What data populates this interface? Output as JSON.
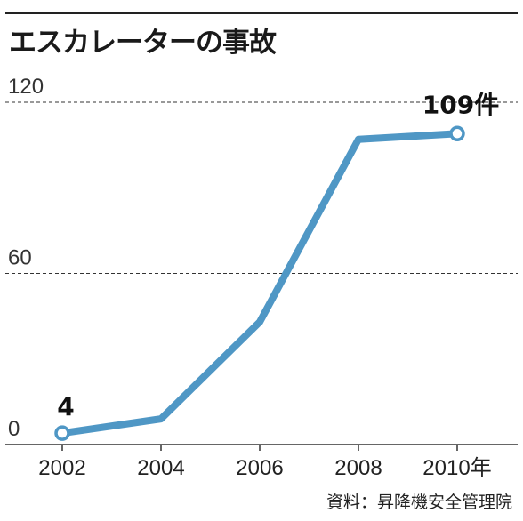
{
  "title": "エスカレーターの事故",
  "source": "資料：昇降機安全管理院",
  "colors": {
    "line": "#4f97c5",
    "marker_fill": "#ffffff",
    "text": "#1a1a1a"
  },
  "chart_data": {
    "type": "line",
    "title": "エスカレーターの事故",
    "x": [
      2002,
      2004,
      2006,
      2008,
      2010
    ],
    "x_tick_labels": [
      "2002",
      "2004",
      "2006",
      "2008",
      "2010年"
    ],
    "y_tick_labels": [
      "0",
      "60",
      "120"
    ],
    "y_ticks": [
      0,
      60,
      120
    ],
    "ylim": [
      0,
      120
    ],
    "series": [
      {
        "values": [
          4,
          9,
          43,
          107,
          109
        ]
      }
    ],
    "data_labels": [
      {
        "index": 0,
        "text": "4"
      },
      {
        "index": 4,
        "text": "109件"
      }
    ],
    "grid": "dashed horizontal lines at 60 and 120",
    "legend": "none"
  }
}
